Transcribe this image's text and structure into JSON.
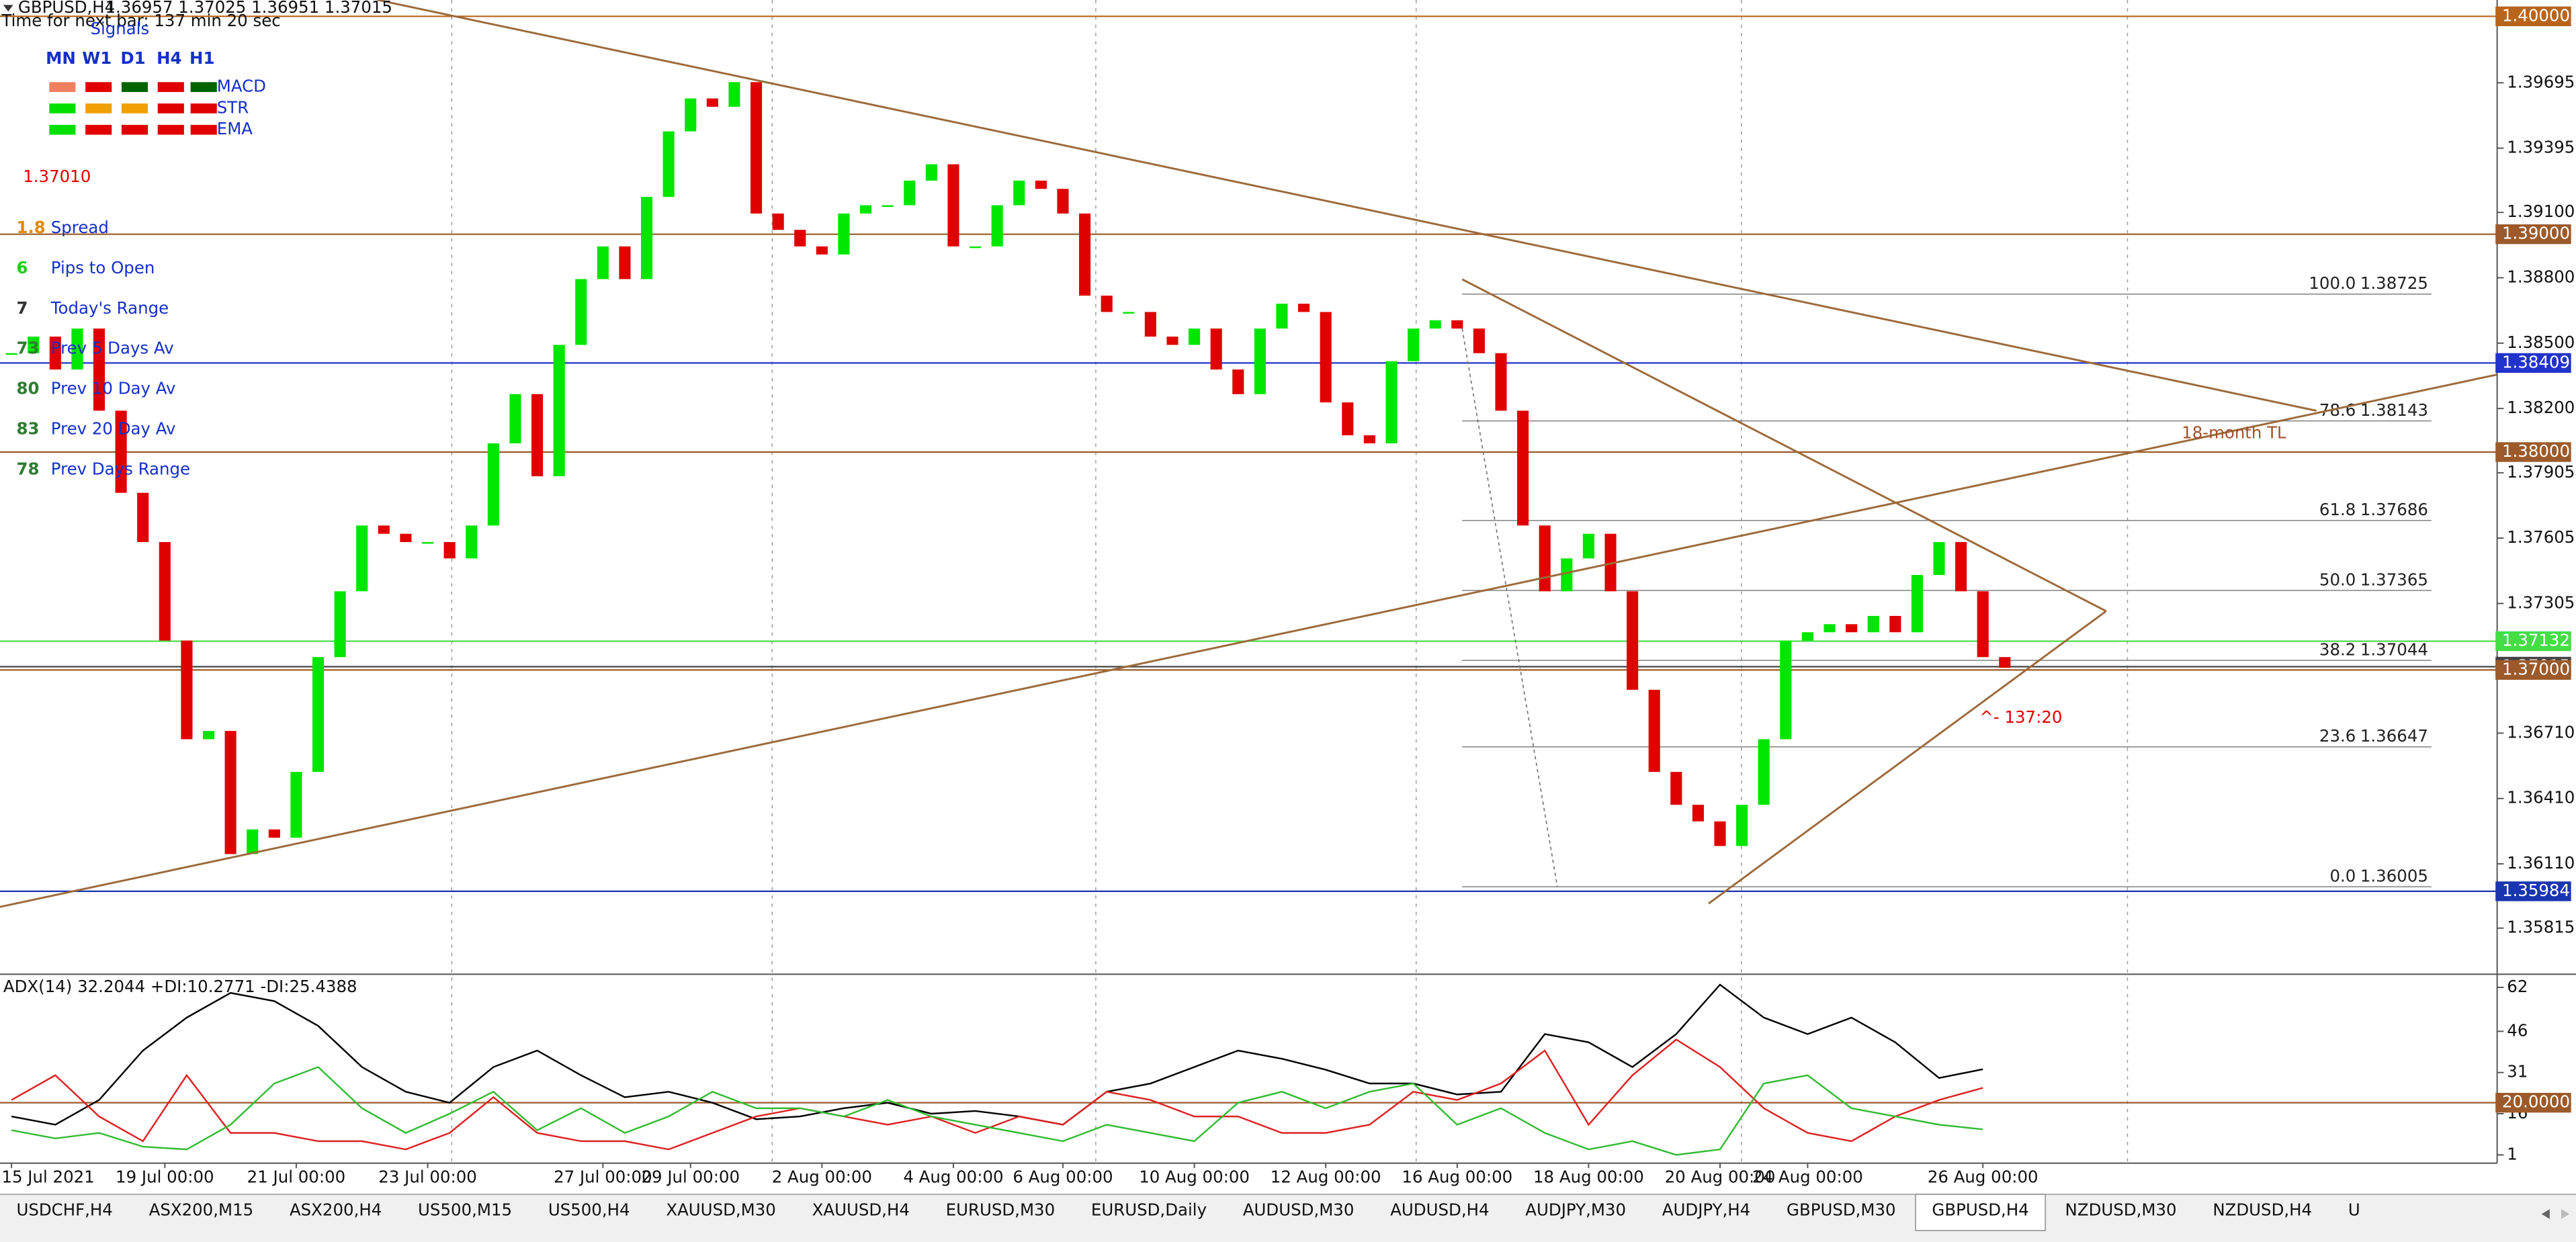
{
  "header": {
    "symbol": "GBPUSD,H4",
    "ohlc": "1.36957 1.37025 1.36951 1.37015",
    "timer": "Time for next bar: 137 min 20 sec"
  },
  "signals": {
    "title": "Signals",
    "columns": [
      "MN",
      "W1",
      "D1",
      "H4",
      "H1"
    ],
    "rows": [
      {
        "name": "MACD",
        "colors": [
          "#f08060",
          "#e00000",
          "#006400",
          "#e00000",
          "#006400"
        ]
      },
      {
        "name": "STR",
        "colors": [
          "#00e000",
          "#f0a000",
          "#f0a000",
          "#e00000",
          "#e00000"
        ]
      },
      {
        "name": "EMA",
        "colors": [
          "#00e000",
          "#e00000",
          "#e00000",
          "#e00000",
          "#e00000"
        ]
      }
    ]
  },
  "price_display": "1.37010",
  "stats": [
    {
      "value": "1.8",
      "label": "Spread",
      "color": "#e08a00"
    },
    {
      "value": "6",
      "label": "Pips to Open",
      "color": "#22cc22"
    },
    {
      "value": "7",
      "label": "Today's Range",
      "color": "#333333"
    },
    {
      "value": "73",
      "label": "Prev 5 Days Av",
      "color": "#2e7d32"
    },
    {
      "value": "80",
      "label": "Prev 10 Day Av",
      "color": "#2e7d32"
    },
    {
      "value": "83",
      "label": "Prev 20 Day Av",
      "color": "#2e7d32"
    },
    {
      "value": "78",
      "label": "Prev Days Range",
      "color": "#2e7d32"
    }
  ],
  "annotations": {
    "trendline": "18-month TL",
    "timer_note": "^- 137:20"
  },
  "chart_data": [
    {
      "type": "candlestick",
      "up_color": "#00e600",
      "down_color": "#e00000",
      "close": [
        1.38454,
        1.3853,
        1.38379,
        1.38567,
        1.3819,
        1.37813,
        1.37587,
        1.37135,
        1.36682,
        1.3672,
        1.36155,
        1.36268,
        1.3623,
        1.36532,
        1.37059,
        1.37361,
        1.37663,
        1.37625,
        1.37587,
        1.37587,
        1.37512,
        1.37663,
        1.3804,
        1.38266,
        1.37889,
        1.38492,
        1.38794,
        1.38944,
        1.38794,
        1.39171,
        1.39472,
        1.39623,
        1.39585,
        1.39698,
        1.39095,
        1.3902,
        1.38944,
        1.38907,
        1.39095,
        1.39133,
        1.39133,
        1.39246,
        1.39321,
        1.38944,
        1.38944,
        1.39133,
        1.39246,
        1.39208,
        1.39095,
        1.38718,
        1.38643,
        1.38643,
        1.3853,
        1.38492,
        1.38567,
        1.38379,
        1.38266,
        1.38567,
        1.38681,
        1.38643,
        1.38228,
        1.38077,
        1.3804,
        1.38417,
        1.38567,
        1.38605,
        1.38567,
        1.38454,
        1.3819,
        1.37663,
        1.37361,
        1.37512,
        1.37625,
        1.37361,
        1.36909,
        1.36532,
        1.36381,
        1.36305,
        1.36192,
        1.36381,
        1.36682,
        1.37135,
        1.37173,
        1.3721,
        1.37173,
        1.37248,
        1.37173,
        1.37436,
        1.37587,
        1.37361,
        1.37059,
        1.3701
      ],
      "xticks": [
        {
          "value": 0,
          "label": "15 Jul 2021"
        },
        {
          "value": 7,
          "label": "19 Jul 00:00"
        },
        {
          "value": 13,
          "label": "21 Jul 00:00"
        },
        {
          "value": 19,
          "label": "23 Jul 00:00"
        },
        {
          "value": 27,
          "label": "27 Jul 00:00"
        },
        {
          "value": 31,
          "label": "29 Jul 00:00"
        },
        {
          "value": 37,
          "label": "2 Aug 00:00"
        },
        {
          "value": 43,
          "label": "4 Aug 00:00"
        },
        {
          "value": 48,
          "label": "6 Aug 00:00"
        },
        {
          "value": 54,
          "label": "10 Aug 00:00"
        },
        {
          "value": 60,
          "label": "12 Aug 00:00"
        },
        {
          "value": 66,
          "label": "16 Aug 00:00"
        },
        {
          "value": 72,
          "label": "18 Aug 00:00"
        },
        {
          "value": 78,
          "label": "20 Aug 00:00"
        },
        {
          "value": 82,
          "label": "24 Aug 00:00"
        },
        {
          "value": 90,
          "label": "26 Aug 00:00"
        }
      ],
      "ylim": [
        1.35611,
        1.40075
      ],
      "yticks": [
        1.39695,
        1.39395,
        {
          "value": 1.391,
          "label": "1.39100"
        },
        {
          "value": 1.388,
          "label": "1.38800"
        },
        {
          "value": 1.385,
          "label": "1.38500"
        },
        {
          "value": 1.382,
          "label": "1.38200"
        },
        1.37905,
        1.37605,
        1.37305,
        {
          "value": 1.3671,
          "label": "1.36710"
        },
        {
          "value": 1.3641,
          "label": "1.36410"
        },
        {
          "value": 1.3611,
          "label": "1.36110"
        },
        1.35815
      ],
      "levels": [
        {
          "price": {
            "value": 1.4,
            "label": "1.40000"
          },
          "color": "#b8651b"
        },
        {
          "price": {
            "value": 1.39,
            "label": "1.39000"
          },
          "color": "#9c5a2a"
        },
        {
          "price": 1.38409,
          "color": "#2233cc"
        },
        {
          "price": {
            "value": 1.38,
            "label": "1.38000"
          },
          "color": "#9c5a2a"
        },
        {
          "price": 1.37132,
          "color": "#44dd44"
        },
        {
          "price": 1.37015,
          "color": "#444444"
        },
        {
          "price": {
            "value": 1.37,
            "label": "1.37000"
          },
          "color": "#9c5a2a"
        },
        {
          "price": 1.35984,
          "color": "#1a35b0"
        }
      ],
      "fib": [
        {
          "level": "100.0",
          "price": 1.38725
        },
        {
          "level": "78.6",
          "price": 1.38143
        },
        {
          "level": "61.8",
          "price": 1.37686
        },
        {
          "level": "50.0",
          "price": 1.37365
        },
        {
          "level": "38.2",
          "price": 1.37044
        },
        {
          "level": "23.6",
          "price": 1.36647
        },
        {
          "level": "0.0",
          "price": 1.36005
        }
      ]
    },
    {
      "type": "line",
      "title": "ADX(14) 32.2044 +DI:10.2771 -DI:25.4388",
      "x": [
        0,
        2,
        4,
        6,
        8,
        10,
        12,
        14,
        16,
        18,
        20,
        22,
        24,
        26,
        28,
        30,
        32,
        34,
        36,
        38,
        40,
        42,
        44,
        46,
        48,
        50,
        52,
        54,
        56,
        58,
        60,
        62,
        64,
        66,
        68,
        70,
        72,
        74,
        76,
        78,
        80,
        82,
        84,
        86,
        88,
        90
      ],
      "series": [
        {
          "color": "#000000",
          "values": [
            15,
            12,
            21,
            39,
            51,
            60,
            57,
            48,
            33,
            24,
            20,
            33,
            39,
            30,
            22,
            24,
            20,
            14,
            15,
            18,
            20,
            16,
            17,
            15,
            12,
            24,
            27,
            33,
            39,
            36,
            32,
            27,
            27,
            23,
            24,
            45,
            42,
            33,
            45,
            63,
            51,
            45,
            51,
            42,
            29,
            32.2
          ]
        },
        {
          "color": "#dd2222",
          "values": [
            21,
            30,
            15,
            6,
            30,
            9,
            9,
            6,
            6,
            3,
            9,
            22,
            9,
            6,
            6,
            3,
            9,
            15,
            18,
            15,
            12,
            15,
            9,
            15,
            12,
            24,
            21,
            15,
            15,
            9,
            9,
            12,
            24,
            21,
            27,
            39,
            12,
            30,
            43,
            33,
            18,
            9,
            6,
            15,
            21,
            25.4
          ]
        },
        {
          "color": "#33bb33",
          "values": [
            10,
            7,
            9,
            4,
            3,
            12,
            27,
            33,
            18,
            9,
            16,
            24,
            10,
            18,
            9,
            15,
            24,
            18,
            18,
            15,
            21,
            15,
            12,
            9,
            6,
            12,
            9,
            6,
            20,
            24,
            18,
            24,
            27,
            12,
            18,
            9,
            3,
            6,
            1,
            3,
            27,
            30,
            18,
            15,
            12,
            10.3
          ]
        }
      ],
      "ylim": [
        -2,
        66.2
      ],
      "yticks": [
        62,
        46,
        31,
        16,
        1
      ],
      "levels": [
        {
          "price": {
            "value": 20,
            "label": "20.0000"
          },
          "color": "#9c5a2a"
        }
      ]
    }
  ],
  "tabs": [
    "USDCHF,H4",
    "ASX200,M15",
    "ASX200,H4",
    "US500,M15",
    "US500,H4",
    "XAUUSD,M30",
    "XAUUSD,H4",
    "EURUSD,M30",
    "EURUSD,Daily",
    "AUDUSD,M30",
    "AUDUSD,H4",
    "AUDJPY,M30",
    "AUDJPY,H4",
    "GBPUSD,M30",
    "GBPUSD,H4",
    "NZDUSD,M30",
    "NZDUSD,H4",
    "U"
  ],
  "active_tab": 14
}
